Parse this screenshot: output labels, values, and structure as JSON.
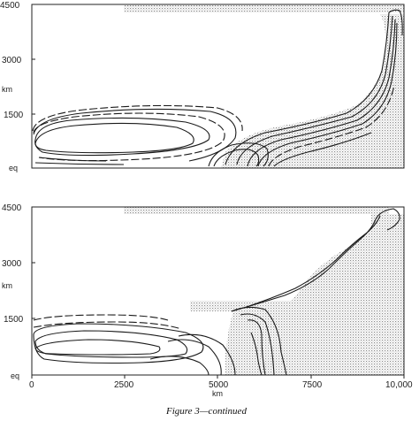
{
  "figure": {
    "caption": "Figure 3—continued",
    "top_panel": {
      "y_ticks": [
        "4500",
        "3000",
        "1500",
        "eq"
      ],
      "y_unit": "km"
    },
    "bottom_panel": {
      "y_ticks": [
        "4500",
        "3000",
        "1500",
        "eq"
      ],
      "y_unit": "km",
      "x_ticks": [
        "0",
        "2500",
        "5000",
        "7500",
        "10,000"
      ],
      "x_unit": "km"
    }
  },
  "colors": {
    "stipple": "#9a9a9a",
    "ink": "#1a1a1a"
  }
}
